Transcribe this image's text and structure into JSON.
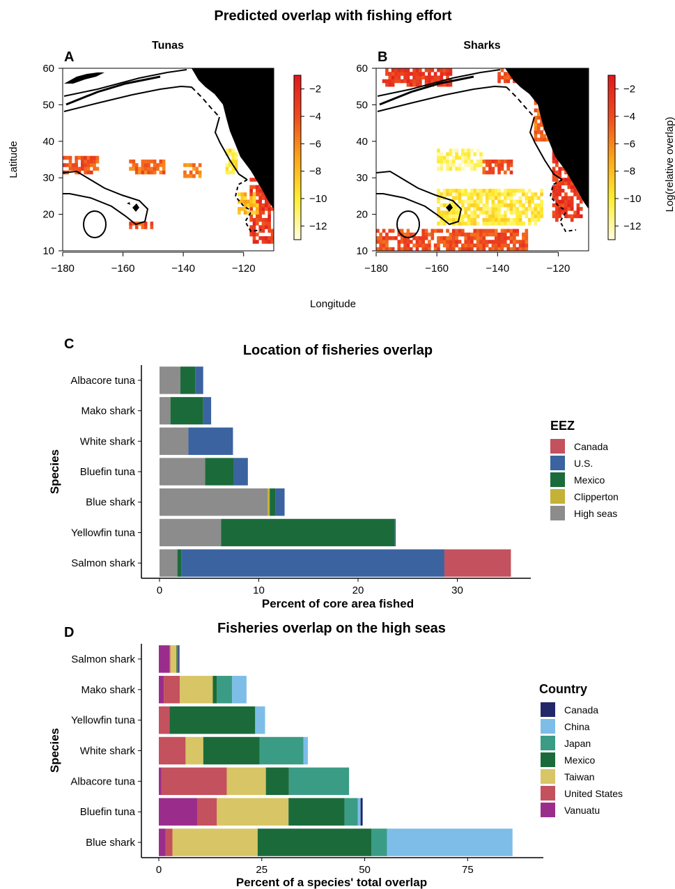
{
  "figure_title": "Predicted overlap with fishing effort",
  "colors": {
    "Canada_eez": "#c4515e",
    "U.S.": "#3a63a0",
    "Mexico": "#1b6b3a",
    "Clipperton": "#c4b236",
    "High seas": "#8c8c8c",
    "Canada": "#232669",
    "China": "#7dbde8",
    "Japan": "#3a9c85",
    "Taiwan": "#d8c566",
    "United States": "#c4515e",
    "Vanuatu": "#9a2d8c"
  },
  "chart_data": [
    {
      "type": "heatmap",
      "panel": "A",
      "title": "Tunas",
      "xlabel": "Longitude",
      "ylabel": "Latitude",
      "xlim": [
        -180,
        -110
      ],
      "ylim": [
        10,
        60
      ],
      "x_ticks": [
        "−180",
        "−160",
        "−140",
        "−120"
      ],
      "x_tick_values": [
        -180,
        -160,
        -140,
        -120
      ],
      "y_ticks": [
        "60",
        "50",
        "40",
        "30",
        "20",
        "10"
      ],
      "y_tick_values": [
        60,
        50,
        40,
        30,
        20,
        10
      ],
      "colorbar": {
        "ticks": [
          "−2",
          "−4",
          "−6",
          "−8",
          "−10",
          "−12"
        ],
        "tick_values": [
          -2,
          -4,
          -6,
          -8,
          -10,
          -12
        ],
        "range": [
          -13,
          -1
        ]
      },
      "regions": [
        {
          "lon": [
            -180,
            -168
          ],
          "lat": [
            31,
            36
          ],
          "value": -4
        },
        {
          "lon": [
            -158,
            -146
          ],
          "lat": [
            31,
            35
          ],
          "value": -5
        },
        {
          "lon": [
            -140,
            -134
          ],
          "lat": [
            30,
            34
          ],
          "value": -6
        },
        {
          "lon": [
            -126,
            -122
          ],
          "lat": [
            31,
            38
          ],
          "value": -10
        },
        {
          "lon": [
            -118,
            -110
          ],
          "lat": [
            12,
            30
          ],
          "value": -3
        },
        {
          "lon": [
            -122,
            -115
          ],
          "lat": [
            20,
            26
          ],
          "value": -8
        },
        {
          "lon": [
            -158,
            -150
          ],
          "lat": [
            16,
            18
          ],
          "value": -4
        }
      ]
    },
    {
      "type": "heatmap",
      "panel": "B",
      "title": "Sharks",
      "xlabel": "Longitude",
      "ylabel": "",
      "xlim": [
        -180,
        -110
      ],
      "ylim": [
        10,
        60
      ],
      "x_ticks": [
        "−180",
        "−160",
        "−140",
        "−120"
      ],
      "x_tick_values": [
        -180,
        -160,
        -140,
        -120
      ],
      "y_ticks": [
        "60",
        "50",
        "40",
        "30",
        "20",
        "10"
      ],
      "y_tick_values": [
        60,
        50,
        40,
        30,
        20,
        10
      ],
      "colorbar": {
        "title": "Log(relative overlap)",
        "ticks": [
          "−2",
          "−4",
          "−6",
          "−8",
          "−10",
          "−12"
        ],
        "tick_values": [
          -2,
          -4,
          -6,
          -8,
          -10,
          -12
        ],
        "range": [
          -13,
          -1
        ]
      },
      "regions": [
        {
          "lon": [
            -178,
            -155
          ],
          "lat": [
            55,
            60
          ],
          "value": -3
        },
        {
          "lon": [
            -140,
            -125
          ],
          "lat": [
            56,
            60
          ],
          "value": -4
        },
        {
          "lon": [
            -128,
            -122
          ],
          "lat": [
            40,
            52
          ],
          "value": -5
        },
        {
          "lon": [
            -160,
            -145
          ],
          "lat": [
            32,
            38
          ],
          "value": -11
        },
        {
          "lon": [
            -145,
            -135
          ],
          "lat": [
            31,
            35
          ],
          "value": -4
        },
        {
          "lon": [
            -160,
            -125
          ],
          "lat": [
            17,
            27
          ],
          "value": -10
        },
        {
          "lon": [
            -180,
            -130
          ],
          "lat": [
            10,
            16
          ],
          "value": -4
        },
        {
          "lon": [
            -122,
            -112
          ],
          "lat": [
            18,
            38
          ],
          "value": -3
        }
      ]
    },
    {
      "type": "bar",
      "orientation": "horizontal",
      "stacked": true,
      "panel": "C",
      "title": "Location of fisheries overlap",
      "xlabel": "Percent of core area fished",
      "ylabel": "Species",
      "xlim": [
        0,
        36
      ],
      "x_ticks": [
        "0",
        "10",
        "20",
        "30"
      ],
      "x_tick_values": [
        0,
        10,
        20,
        30
      ],
      "legend_title": "EEZ",
      "legend": [
        "Canada",
        "U.S.",
        "Mexico",
        "Clipperton",
        "High seas"
      ],
      "legend_position": "right",
      "categories": [
        "Albacore tuna",
        "Mako shark",
        "White shark",
        "Bluefin tuna",
        "Blue shark",
        "Yellowfin tuna",
        "Salmon shark"
      ],
      "stack_order": [
        "High seas",
        "Clipperton",
        "Mexico",
        "U.S.",
        "Canada"
      ],
      "series": [
        {
          "name": "High seas",
          "values": [
            2.1,
            1.1,
            2.9,
            4.6,
            10.9,
            6.2,
            1.8
          ]
        },
        {
          "name": "Clipperton",
          "values": [
            0,
            0,
            0,
            0,
            0.2,
            0,
            0
          ]
        },
        {
          "name": "Mexico",
          "values": [
            1.5,
            3.3,
            0,
            2.9,
            0.6,
            17.5,
            0.4
          ]
        },
        {
          "name": "U.S.",
          "values": [
            0.8,
            0.8,
            4.5,
            1.4,
            0.9,
            0.1,
            26.5
          ]
        },
        {
          "name": "Canada",
          "values": [
            0,
            0,
            0,
            0,
            0,
            0,
            6.7
          ]
        }
      ]
    },
    {
      "type": "bar",
      "orientation": "horizontal",
      "stacked": true,
      "panel": "D",
      "title": "Fisheries overlap on the high seas",
      "xlabel": "Percent of a species' total overlap",
      "ylabel": "Species",
      "xlim": [
        0,
        90
      ],
      "x_ticks": [
        "0",
        "25",
        "50",
        "75"
      ],
      "x_tick_values": [
        0,
        25,
        50,
        75
      ],
      "legend_title": "Country",
      "legend": [
        "Canada",
        "China",
        "Japan",
        "Mexico",
        "Taiwan",
        "United States",
        "Vanuatu"
      ],
      "legend_position": "right",
      "categories": [
        "Salmon shark",
        "Mako shark",
        "Yellowfin tuna",
        "White shark",
        "Albacore tuna",
        "Bluefin tuna",
        "Blue shark"
      ],
      "stack_order": [
        "Vanuatu",
        "United States",
        "Taiwan",
        "Mexico",
        "Japan",
        "China",
        "Canada"
      ],
      "series": [
        {
          "name": "Vanuatu",
          "values": [
            2.6,
            1.2,
            0,
            0,
            0.6,
            9.3,
            1.6
          ]
        },
        {
          "name": "United States",
          "values": [
            0.2,
            3.9,
            2.6,
            6.5,
            15.9,
            4.8,
            1.7
          ]
        },
        {
          "name": "Taiwan",
          "values": [
            1.5,
            8.0,
            0,
            4.3,
            9.5,
            17.4,
            20.7
          ]
        },
        {
          "name": "Mexico",
          "values": [
            0.3,
            1.0,
            20.8,
            13.7,
            5.6,
            13.6,
            27.6
          ]
        },
        {
          "name": "Japan",
          "values": [
            0,
            3.7,
            0,
            10.6,
            14.6,
            3.2,
            3.8
          ]
        },
        {
          "name": "China",
          "values": [
            0.1,
            3.5,
            2.4,
            1.1,
            0,
            0.7,
            30.5
          ]
        },
        {
          "name": "Canada",
          "values": [
            0.3,
            0,
            0,
            0,
            0,
            0.5,
            0
          ]
        }
      ]
    }
  ]
}
